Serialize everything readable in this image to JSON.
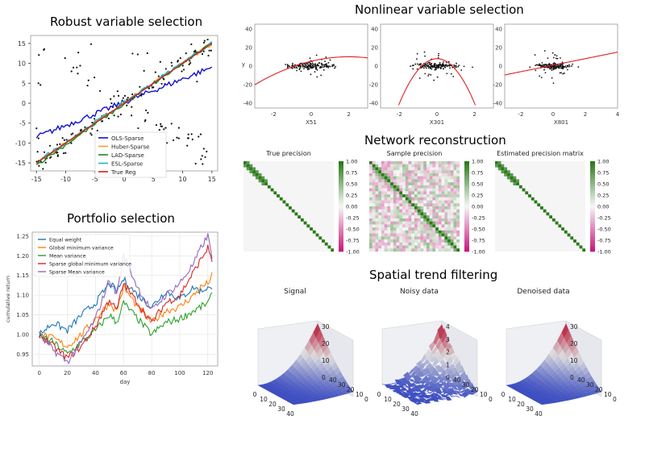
{
  "titles": {
    "robust": "Robust variable selection",
    "portfolio": "Portfolio selection",
    "nonlinear": "Nonlinear variable selection",
    "network": "Network reconstruction",
    "spatial": "Spatial trend filtering"
  },
  "chart_data": [
    {
      "id": "robust",
      "type": "line",
      "title": "Robust variable selection",
      "xlim": [
        -16,
        16
      ],
      "ylim": [
        -17,
        17
      ],
      "xticks": [
        "-15",
        "-10",
        "-5",
        "0",
        "5",
        "10",
        "15"
      ],
      "yticks": [
        "15",
        "10",
        "5",
        "0",
        "-5",
        "-10",
        "-15"
      ],
      "legend_position": "lower-right",
      "series": [
        {
          "name": "OLS-Sparse",
          "color": "#1010d0",
          "x": [
            -15,
            -10,
            -5,
            0,
            5,
            10,
            15
          ],
          "y": [
            -8.5,
            -5.5,
            -2.4,
            0.5,
            3.4,
            6.3,
            9.0
          ]
        },
        {
          "name": "Huber-Sparse",
          "color": "#f0a030",
          "x": [
            -15,
            15
          ],
          "y": [
            -15,
            15
          ]
        },
        {
          "name": "LAD-Sparse",
          "color": "#1a8a1a",
          "x": [
            -15,
            15
          ],
          "y": [
            -15.5,
            15
          ]
        },
        {
          "name": "ESL-Sparse",
          "color": "#20b8c8",
          "x": [
            -15,
            15
          ],
          "y": [
            -14.8,
            15.2
          ]
        },
        {
          "name": "True Reg",
          "color": "#d02020",
          "x": [
            -15,
            15
          ],
          "y": [
            -15,
            15
          ]
        }
      ]
    },
    {
      "id": "portfolio",
      "type": "line",
      "title": "Portfolio selection",
      "xlabel": "day",
      "ylabel": "cumulative return",
      "xlim": [
        -5,
        127
      ],
      "ylim": [
        0.92,
        1.26
      ],
      "xticks": [
        "0",
        "20",
        "40",
        "60",
        "80",
        "100",
        "120"
      ],
      "yticks": [
        "1.25",
        "1.20",
        "1.15",
        "1.10",
        "1.05",
        "1.00",
        "0.95"
      ],
      "grid": true,
      "legend_position": "top-left",
      "x": [
        0,
        10,
        20,
        30,
        40,
        50,
        55,
        60,
        70,
        80,
        90,
        100,
        110,
        115,
        120,
        123
      ],
      "series": [
        {
          "name": "Equal weight",
          "color": "#1f77b4",
          "values": [
            1.0,
            1.03,
            1.01,
            1.05,
            1.08,
            1.13,
            1.11,
            1.14,
            1.1,
            1.07,
            1.11,
            1.09,
            1.12,
            1.11,
            1.12,
            1.11
          ]
        },
        {
          "name": "Global minimum variance",
          "color": "#ff7f0e",
          "values": [
            1.0,
            0.99,
            0.97,
            1.0,
            1.04,
            1.08,
            1.06,
            1.12,
            1.07,
            1.03,
            1.06,
            1.07,
            1.1,
            1.12,
            1.13,
            1.15
          ]
        },
        {
          "name": "Mean variance",
          "color": "#2ca02c",
          "values": [
            1.0,
            0.98,
            0.95,
            0.98,
            1.01,
            1.05,
            1.03,
            1.08,
            1.04,
            1.0,
            1.03,
            1.04,
            1.06,
            1.07,
            1.08,
            1.1
          ]
        },
        {
          "name": "Sparse global minimum variance",
          "color": "#d62728",
          "values": [
            1.0,
            0.97,
            0.94,
            0.97,
            1.02,
            1.09,
            1.06,
            1.13,
            1.08,
            1.03,
            1.08,
            1.1,
            1.16,
            1.19,
            1.22,
            1.19
          ]
        },
        {
          "name": "Sparse Mean variance",
          "color": "#9467bd",
          "values": [
            1.0,
            0.96,
            0.93,
            0.98,
            1.04,
            1.14,
            1.1,
            1.2,
            1.12,
            1.06,
            1.1,
            1.13,
            1.18,
            1.22,
            1.25,
            1.2
          ]
        }
      ]
    },
    {
      "id": "nonlinear",
      "type": "scatter",
      "title": "Nonlinear variable selection",
      "panels": [
        {
          "xlabel": "X51",
          "ylabel": "y",
          "xlim": [
            -3,
            3
          ],
          "ylim": [
            -45,
            45
          ],
          "xticks": [
            "-2",
            "0",
            "2"
          ],
          "yticks": [
            "40",
            "20",
            "0",
            "-20",
            "-40"
          ],
          "curve": "quadratic_rising"
        },
        {
          "xlabel": "X301",
          "ylabel": "",
          "xlim": [
            -3,
            3
          ],
          "ylim": [
            -45,
            45
          ],
          "xticks": [
            "-2",
            "0",
            "2"
          ],
          "yticks": [
            "40",
            "20",
            "0",
            "-20",
            "-40"
          ],
          "curve": "inverted_parabola"
        },
        {
          "xlabel": "X801",
          "ylabel": "",
          "xlim": [
            -3,
            4
          ],
          "ylim": [
            -45,
            45
          ],
          "xticks": [
            "-2",
            "0",
            "2",
            "4"
          ],
          "yticks": [
            "40",
            "20",
            "0",
            "-20",
            "-40"
          ],
          "curve": "linear"
        }
      ]
    },
    {
      "id": "network",
      "type": "heatmap",
      "title": "Network reconstruction",
      "panels": [
        {
          "title": "True precision"
        },
        {
          "title": "Sample precision"
        },
        {
          "title": "Estimated precision matrix"
        }
      ],
      "colorbar_ticks": [
        "1.00",
        "0.75",
        "0.50",
        "0.25",
        "0.00",
        "-0.25",
        "-0.50",
        "-0.75",
        "-1.00"
      ],
      "colormap": [
        "#2a7a1a",
        "#f7f7f7",
        "#c51b7d"
      ]
    },
    {
      "id": "spatial",
      "type": "surface",
      "title": "Spatial trend filtering",
      "panels": [
        {
          "title": "Signal",
          "zticks": [
            "30",
            "20",
            "10",
            "0"
          ]
        },
        {
          "title": "Noisy data",
          "zticks": [
            "4",
            "3",
            "2",
            "1",
            "0"
          ]
        },
        {
          "title": "Denoised data",
          "zticks": [
            "30",
            "20",
            "10",
            "0"
          ]
        }
      ],
      "xticks": [
        "0",
        "10",
        "20",
        "30",
        "40"
      ],
      "yticks": [
        "0",
        "10",
        "20",
        "30",
        "40"
      ],
      "colormap": [
        "#3b4cc0",
        "#dddddd",
        "#b40426"
      ]
    }
  ]
}
